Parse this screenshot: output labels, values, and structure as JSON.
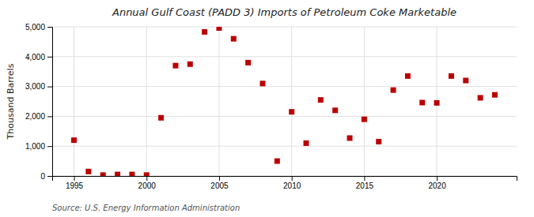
{
  "chart_data": {
    "type": "scatter",
    "title": "Annual Gulf Coast (PADD 3) Imports of Petroleum Coke Marketable",
    "ylabel": "Thousand Barrels",
    "source": "Source: U.S. Energy Information Administration",
    "x": [
      1995,
      1996,
      1997,
      1998,
      1999,
      2000,
      2001,
      2002,
      2003,
      2004,
      2005,
      2006,
      2007,
      2008,
      2009,
      2010,
      2011,
      2012,
      2013,
      2014,
      2015,
      2016,
      2017,
      2018,
      2019,
      2020,
      2021,
      2022,
      2023,
      2024
    ],
    "values": [
      1200,
      150,
      30,
      50,
      50,
      30,
      1950,
      3700,
      3750,
      4830,
      4960,
      4600,
      3800,
      3100,
      500,
      2150,
      1100,
      2550,
      2200,
      1270,
      1900,
      1150,
      2880,
      3350,
      2460,
      2450,
      3350,
      3200,
      2620,
      2720
    ],
    "color": "#bb0000",
    "marker": "square",
    "xlim": [
      1993.5,
      2025.5
    ],
    "xticks": [
      1995,
      2000,
      2005,
      2010,
      2015,
      2020
    ],
    "ylim": [
      0,
      5000
    ],
    "yticks": [
      0,
      {
        "value": 1000,
        "label": "1,000"
      },
      {
        "value": 2000,
        "label": "2,000"
      },
      {
        "value": 3000,
        "label": "3,000"
      },
      {
        "value": 4000,
        "label": "4,000"
      },
      {
        "value": 5000,
        "label": "5,000"
      }
    ],
    "grid": true
  }
}
